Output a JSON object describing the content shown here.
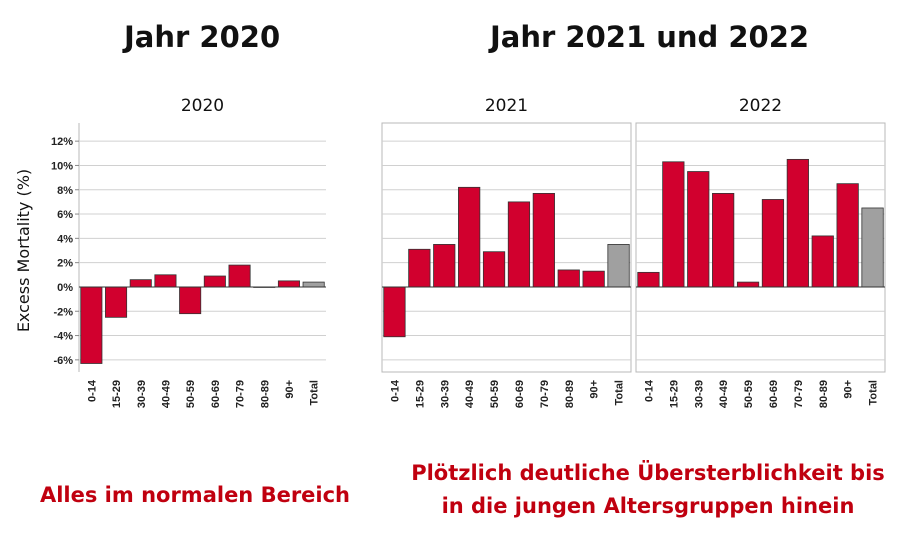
{
  "headings": {
    "left": "Jahr 2020",
    "right": "Jahr 2021 und 2022"
  },
  "captions": {
    "left": "Alles im normalen Bereich",
    "right_line1": "Plötzlich deutliche Übersterblichkeit bis",
    "right_line2": "in die jungen Altersgruppen hinein"
  },
  "colors": {
    "bar": "#d1002e",
    "total_bar": "#a0a0a0",
    "caption": "#c0000f"
  },
  "chart_data": [
    {
      "type": "bar",
      "title": "2020",
      "ylabel": "Excess Mortality (%)",
      "ylim": [
        -7,
        13
      ],
      "yticks": [
        "12%",
        "10%",
        "8%",
        "6%",
        "4%",
        "2%",
        "0%",
        "-2%",
        "-4%",
        "-6%"
      ],
      "categories": [
        "0-14",
        "15-29",
        "30-39",
        "40-49",
        "50-59",
        "60-69",
        "70-79",
        "80-89",
        "90+",
        "Total"
      ],
      "values": [
        -6.3,
        -2.5,
        0.6,
        1.0,
        -2.2,
        0.9,
        1.8,
        0.0,
        0.5,
        0.4
      ],
      "grid": true
    },
    {
      "type": "bar",
      "title": "2021",
      "ylim": [
        -7,
        13
      ],
      "categories": [
        "0-14",
        "15-29",
        "30-39",
        "40-49",
        "50-59",
        "60-69",
        "70-79",
        "80-89",
        "90+",
        "Total"
      ],
      "values": [
        -4.1,
        3.1,
        3.5,
        8.2,
        2.9,
        7.0,
        7.7,
        1.4,
        1.3,
        3.5
      ],
      "grid": true
    },
    {
      "type": "bar",
      "title": "2022",
      "ylim": [
        -7,
        13
      ],
      "categories": [
        "0-14",
        "15-29",
        "30-39",
        "40-49",
        "50-59",
        "60-69",
        "70-79",
        "80-89",
        "90+",
        "Total"
      ],
      "values": [
        1.2,
        10.3,
        9.5,
        7.7,
        0.4,
        7.2,
        10.5,
        4.2,
        8.5,
        6.5
      ],
      "grid": true
    }
  ]
}
